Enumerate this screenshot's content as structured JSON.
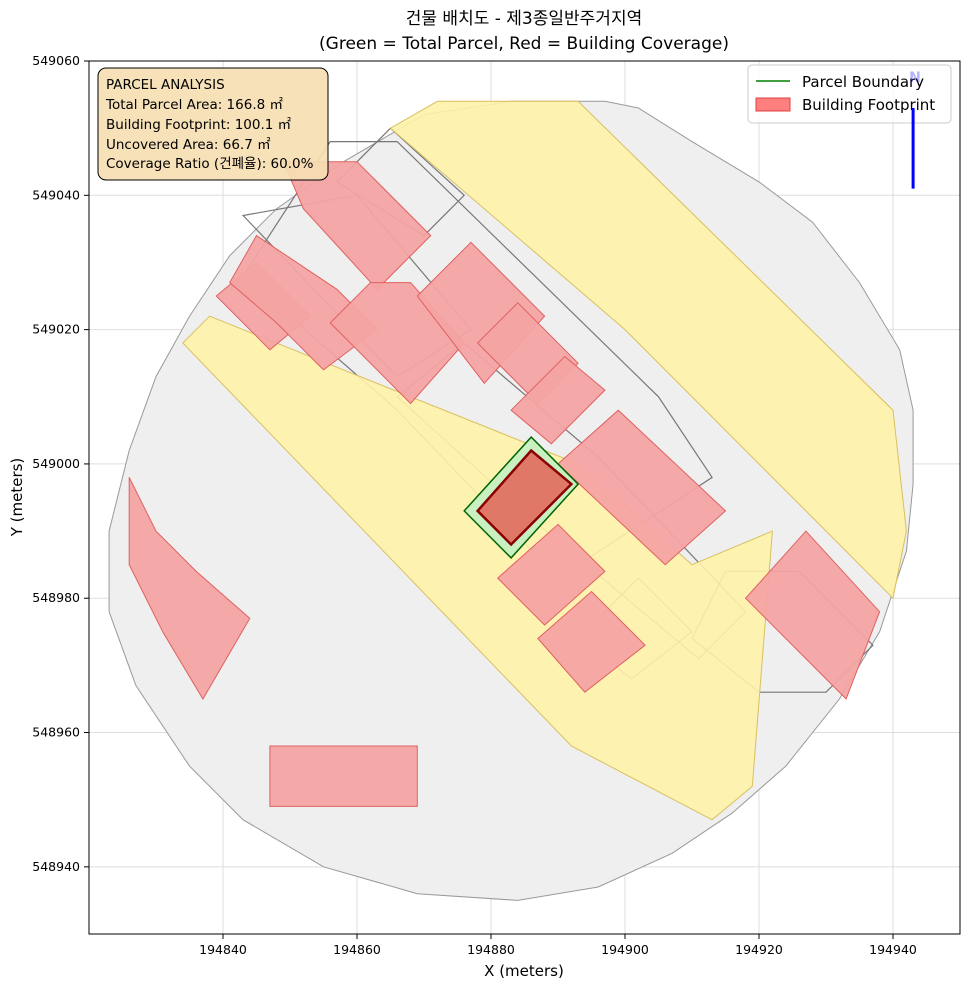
{
  "title_line1": "건물 배치도 - 제3종일반주거지역",
  "title_line2": "(Green = Total Parcel, Red = Building Coverage)",
  "chart_data": {
    "type": "map",
    "xlabel": "X (meters)",
    "ylabel": "Y (meters)",
    "xlim": [
      194820,
      194950
    ],
    "ylim": [
      548930,
      549060
    ],
    "x_ticks": [
      194840,
      194860,
      194880,
      194900,
      194920,
      194940
    ],
    "y_ticks": [
      548940,
      548960,
      548980,
      549000,
      549020,
      549040,
      549060
    ],
    "x_tick_labels": [
      "194840",
      "194860",
      "194880",
      "194900",
      "194920",
      "194940"
    ],
    "y_tick_labels": [
      "548940",
      "548960",
      "548980",
      "549000",
      "549020",
      "549040",
      "549060"
    ],
    "grid": true,
    "legend_position": "top-right",
    "legend": [
      {
        "label": "Parcel Boundary",
        "kind": "line",
        "color": "#008000"
      },
      {
        "label": "Building Footprint",
        "kind": "patch",
        "color": "#ff7f7f",
        "edge": "#e04040"
      }
    ],
    "north_arrow": {
      "label": "N",
      "color": "#0000ff",
      "x": 194943,
      "y_from": 549041,
      "y_to": 549053
    },
    "analysis_box": {
      "heading": "PARCEL ANALYSIS",
      "lines": [
        "Total Parcel Area: 166.8 ㎡",
        "Building Footprint: 100.1 ㎡",
        "Uncovered Area: 66.7 ㎡",
        "Coverage Ratio (건폐율): 60.0%"
      ]
    },
    "focus_parcel": {
      "area_m2": 166.8,
      "polygon": [
        [
          194876,
          548993
        ],
        [
          194886,
          549004
        ],
        [
          194893,
          548997
        ],
        [
          194883,
          548986
        ]
      ]
    },
    "focus_building": {
      "area_m2": 100.1,
      "polygon": [
        [
          194878,
          548993
        ],
        [
          194886,
          549002
        ],
        [
          194892,
          548997
        ],
        [
          194883,
          548988
        ]
      ]
    },
    "site_boundary": [
      [
        194897,
        549054
      ],
      [
        194902,
        549053
      ],
      [
        194910,
        549048
      ],
      [
        194920,
        549042
      ],
      [
        194928,
        549036
      ],
      [
        194935,
        549027
      ],
      [
        194941,
        549017
      ],
      [
        194943,
        549008
      ],
      [
        194943,
        548997
      ],
      [
        194942,
        548987
      ],
      [
        194938,
        548975
      ],
      [
        194932,
        548965
      ],
      [
        194924,
        548955
      ],
      [
        194916,
        548948
      ],
      [
        194907,
        548942
      ],
      [
        194896,
        548937
      ],
      [
        194884,
        548935
      ],
      [
        194869,
        548936
      ],
      [
        194855,
        548940
      ],
      [
        194843,
        548947
      ],
      [
        194835,
        548955
      ],
      [
        194827,
        548967
      ],
      [
        194823,
        548978
      ],
      [
        194823,
        548990
      ],
      [
        194826,
        549002
      ],
      [
        194830,
        549013
      ],
      [
        194835,
        549022
      ],
      [
        194841,
        549031
      ],
      [
        194848,
        549038
      ],
      [
        194858,
        549045
      ],
      [
        194870,
        549052
      ],
      [
        194883,
        549054
      ]
    ],
    "roads": [
      [
        [
          194865,
          549050
        ],
        [
          194872,
          549054
        ],
        [
          194883,
          549054
        ],
        [
          194893,
          549054
        ],
        [
          194940,
          549008
        ],
        [
          194942,
          548990
        ],
        [
          194940,
          548980
        ],
        [
          194900,
          549020
        ]
      ],
      [
        [
          194838,
          549022
        ],
        [
          194834,
          549018
        ],
        [
          194892,
          548958
        ],
        [
          194913,
          548947
        ],
        [
          194919,
          548952
        ],
        [
          194922,
          548990
        ],
        [
          194910,
          548985
        ],
        [
          194893,
          549000
        ]
      ]
    ],
    "roads_fill": "#fff2aa",
    "lots": [
      [
        [
          194856,
          549048
        ],
        [
          194866,
          549048
        ],
        [
          194905,
          549010
        ],
        [
          194913,
          548998
        ],
        [
          194890,
          548983
        ],
        [
          194866,
          549008
        ],
        [
          194843,
          549028
        ]
      ],
      [
        [
          194843,
          549037
        ],
        [
          194866,
          549013
        ],
        [
          194877,
          549020
        ],
        [
          194860,
          549040
        ]
      ],
      [
        [
          194857,
          549042
        ],
        [
          194865,
          549050
        ],
        [
          194876,
          549040
        ],
        [
          194870,
          549034
        ]
      ],
      [
        [
          194866,
          549010
        ],
        [
          194887,
          548991
        ],
        [
          194911,
          548971
        ],
        [
          194918,
          548978
        ],
        [
          194896,
          549001
        ],
        [
          194876,
          549018
        ]
      ],
      [
        [
          194893,
          548974
        ],
        [
          194901,
          548968
        ],
        [
          194910,
          548975
        ],
        [
          194902,
          548983
        ]
      ],
      [
        [
          194910,
          548974
        ],
        [
          194920,
          548966
        ],
        [
          194930,
          548966
        ],
        [
          194937,
          548973
        ],
        [
          194926,
          548984
        ],
        [
          194915,
          548984
        ]
      ]
    ],
    "buildings": [
      [
        [
          194849,
          549045
        ],
        [
          194860,
          549045
        ],
        [
          194871,
          549034
        ],
        [
          194863,
          549026
        ],
        [
          194852,
          549038
        ]
      ],
      [
        [
          194839,
          549025
        ],
        [
          194845,
          549030
        ],
        [
          194853,
          549022
        ],
        [
          194847,
          549017
        ]
      ],
      [
        [
          194845,
          549034
        ],
        [
          194857,
          549026
        ],
        [
          194863,
          549020
        ],
        [
          194855,
          549014
        ],
        [
          194848,
          549021
        ],
        [
          194841,
          549027
        ]
      ],
      [
        [
          194856,
          549021
        ],
        [
          194868,
          549009
        ],
        [
          194876,
          549018
        ],
        [
          194868,
          549027
        ],
        [
          194862,
          549027
        ]
      ],
      [
        [
          194869,
          549025
        ],
        [
          194877,
          549033
        ],
        [
          194888,
          549022
        ],
        [
          194879,
          549012
        ]
      ],
      [
        [
          194878,
          549018
        ],
        [
          194887,
          549009
        ],
        [
          194893,
          549015
        ],
        [
          194884,
          549024
        ]
      ],
      [
        [
          194883,
          549008
        ],
        [
          194889,
          549003
        ],
        [
          194897,
          549011
        ],
        [
          194891,
          549016
        ]
      ],
      [
        [
          194890,
          549000
        ],
        [
          194906,
          548985
        ],
        [
          194915,
          548993
        ],
        [
          194899,
          549008
        ]
      ],
      [
        [
          194881,
          548983
        ],
        [
          194890,
          548991
        ],
        [
          194897,
          548984
        ],
        [
          194888,
          548976
        ]
      ],
      [
        [
          194887,
          548974
        ],
        [
          194895,
          548981
        ],
        [
          194903,
          548973
        ],
        [
          194894,
          548966
        ]
      ],
      [
        [
          194918,
          548980
        ],
        [
          194927,
          548990
        ],
        [
          194938,
          548978
        ],
        [
          194933,
          548965
        ]
      ],
      [
        [
          194826,
          548998
        ],
        [
          194830,
          548990
        ],
        [
          194836,
          548984
        ],
        [
          194844,
          548977
        ],
        [
          194837,
          548965
        ],
        [
          194831,
          548975
        ],
        [
          194826,
          548985
        ]
      ],
      [
        [
          194847,
          548958
        ],
        [
          194869,
          548958
        ],
        [
          194869,
          548949
        ],
        [
          194847,
          548949
        ]
      ]
    ],
    "buildings_fill": "#f4a3a3",
    "background_fill": "#efefef"
  }
}
